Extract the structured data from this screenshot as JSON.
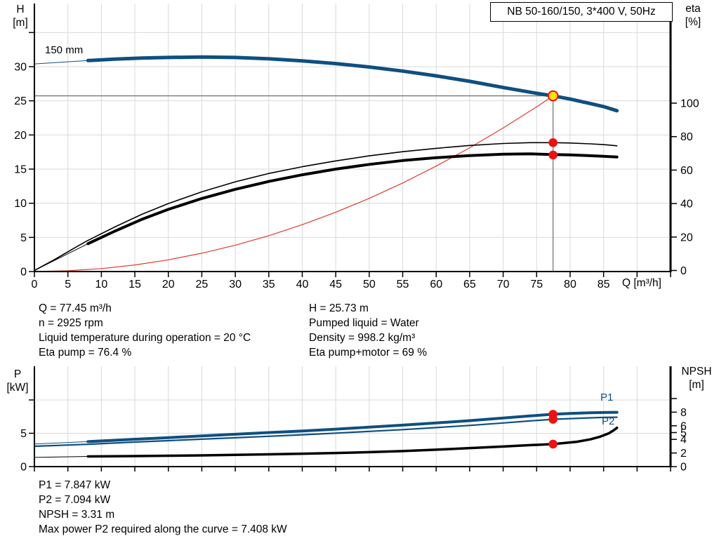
{
  "colors": {
    "curve_blue": "#0e4f80",
    "curve_black": "#000000",
    "curve_red": "#e03a30",
    "dot_red": "#ee1111",
    "duty_yellow": "#ffe014",
    "grid": "#d9d9d9",
    "axis": "#000000",
    "crosshair": "#777777",
    "label_blue": "#0e4f80"
  },
  "chart_data": [
    {
      "type": "line",
      "title": "NB 50-160/150, 3*400 V, 50Hz",
      "x": {
        "label": "Q [m³/h]",
        "min": 0,
        "max": 95,
        "grid_step": 5,
        "ticks": [
          {
            "v": 0,
            "t": "0"
          },
          {
            "v": 5,
            "t": "5"
          },
          {
            "v": 10,
            "t": "10"
          },
          {
            "v": 15,
            "t": "15"
          },
          {
            "v": 20,
            "t": "20"
          },
          {
            "v": 25,
            "t": "25"
          },
          {
            "v": 30,
            "t": "30"
          },
          {
            "v": 35,
            "t": "35"
          },
          {
            "v": 40,
            "t": "40"
          },
          {
            "v": 45,
            "t": "45"
          },
          {
            "v": 50,
            "t": "50"
          },
          {
            "v": 55,
            "t": "55"
          },
          {
            "v": 60,
            "t": "60"
          },
          {
            "v": 65,
            "t": "65"
          },
          {
            "v": 70,
            "t": "70"
          },
          {
            "v": 75,
            "t": "75"
          },
          {
            "v": 80,
            "t": "80"
          },
          {
            "v": 85,
            "t": "85"
          },
          {
            "v": 90,
            "t": ""
          },
          {
            "v": 95,
            "t": ""
          }
        ]
      },
      "y_left": {
        "label": [
          "H",
          "[m]"
        ],
        "min": 0,
        "max": 39,
        "ticks": [
          {
            "v": 0,
            "t": "0"
          },
          {
            "v": 5,
            "t": "5"
          },
          {
            "v": 10,
            "t": "10"
          },
          {
            "v": 15,
            "t": "15"
          },
          {
            "v": 20,
            "t": "20"
          },
          {
            "v": 25,
            "t": "25"
          },
          {
            "v": 30,
            "t": "30"
          },
          {
            "v": 35,
            "t": ""
          }
        ],
        "grid": [
          5,
          10,
          15,
          20,
          25,
          30,
          35
        ]
      },
      "y_right": {
        "label": [
          "eta",
          "[%]"
        ],
        "min": 0,
        "max": 105,
        "ticks": [
          {
            "v": 0,
            "t": "0"
          },
          {
            "v": 20,
            "t": "20"
          },
          {
            "v": 40,
            "t": "40"
          },
          {
            "v": 60,
            "t": "60"
          },
          {
            "v": 80,
            "t": "80"
          },
          {
            "v": 100,
            "t": "100"
          }
        ]
      },
      "series": [
        {
          "name": "system-curve",
          "axis": "left",
          "color": "curve_red",
          "width": 1.2,
          "points": [
            [
              0,
              0
            ],
            [
              5,
              0.11
            ],
            [
              10,
              0.43
            ],
            [
              15,
              0.97
            ],
            [
              20,
              1.72
            ],
            [
              25,
              2.68
            ],
            [
              30,
              3.86
            ],
            [
              35,
              5.25
            ],
            [
              40,
              6.86
            ],
            [
              45,
              8.69
            ],
            [
              50,
              10.72
            ],
            [
              55,
              12.97
            ],
            [
              60,
              15.44
            ],
            [
              65,
              18.12
            ],
            [
              70,
              21.02
            ],
            [
              75,
              24.12
            ],
            [
              77.45,
              25.73
            ]
          ]
        },
        {
          "name": "eta-pump-motor-lead",
          "axis": "right",
          "color": "curve_black",
          "width": 1,
          "points": [
            [
              0,
              0
            ],
            [
              4,
              8
            ],
            [
              8,
              16
            ]
          ]
        },
        {
          "name": "eta-pump",
          "label": "eta pump",
          "axis": "right",
          "color": "curve_black",
          "width": 1.6,
          "points": [
            [
              0,
              0
            ],
            [
              3,
              6.5
            ],
            [
              6,
              13.5
            ],
            [
              8,
              18
            ],
            [
              12,
              26
            ],
            [
              16,
              33.5
            ],
            [
              20,
              40
            ],
            [
              25,
              47
            ],
            [
              30,
              53
            ],
            [
              35,
              58
            ],
            [
              40,
              62
            ],
            [
              45,
              65.5
            ],
            [
              50,
              68.5
            ],
            [
              55,
              71
            ],
            [
              60,
              73
            ],
            [
              65,
              74.7
            ],
            [
              70,
              75.9
            ],
            [
              74,
              76.4
            ],
            [
              77.45,
              76.4
            ],
            [
              80,
              76.2
            ],
            [
              83,
              75.7
            ],
            [
              85,
              75.2
            ],
            [
              87,
              74.5
            ]
          ]
        },
        {
          "name": "eta-pump-motor",
          "label": "eta pump+motor",
          "axis": "right",
          "color": "curve_black",
          "width": 4,
          "points": [
            [
              8,
              16
            ],
            [
              12,
              23.5
            ],
            [
              16,
              30.5
            ],
            [
              20,
              36.5
            ],
            [
              25,
              43
            ],
            [
              30,
              48.5
            ],
            [
              35,
              53.2
            ],
            [
              40,
              57.2
            ],
            [
              45,
              60.6
            ],
            [
              50,
              63.4
            ],
            [
              55,
              65.7
            ],
            [
              60,
              67.4
            ],
            [
              65,
              68.7
            ],
            [
              70,
              69.5
            ],
            [
              74,
              69.7
            ],
            [
              77.45,
              69.3
            ],
            [
              80,
              69.1
            ],
            [
              83,
              68.6
            ],
            [
              85,
              68.2
            ],
            [
              87,
              67.8
            ]
          ]
        },
        {
          "name": "head-lead",
          "axis": "left",
          "color": "curve_blue",
          "width": 1,
          "points": [
            [
              0,
              30.4
            ],
            [
              8,
              30.9
            ]
          ]
        },
        {
          "name": "head-150mm",
          "label": "150 mm",
          "axis": "left",
          "color": "curve_blue",
          "width": 5,
          "points": [
            [
              8,
              30.9
            ],
            [
              12,
              31.1
            ],
            [
              16,
              31.25
            ],
            [
              20,
              31.35
            ],
            [
              25,
              31.42
            ],
            [
              30,
              31.35
            ],
            [
              35,
              31.15
            ],
            [
              40,
              30.85
            ],
            [
              45,
              30.45
            ],
            [
              50,
              29.95
            ],
            [
              55,
              29.35
            ],
            [
              60,
              28.65
            ],
            [
              65,
              27.85
            ],
            [
              70,
              26.95
            ],
            [
              75,
              26.1
            ],
            [
              77.45,
              25.73
            ],
            [
              80,
              25.25
            ],
            [
              83,
              24.6
            ],
            [
              85,
              24.15
            ],
            [
              87,
              23.55
            ]
          ]
        }
      ],
      "duty_point": {
        "q": 77.45,
        "h": 25.73,
        "eta_pump": 76.4,
        "eta_pump_motor": 69
      }
    },
    {
      "type": "line",
      "x": {
        "label": "",
        "min": 0,
        "max": 95,
        "grid_step": 5,
        "ticks": [
          {
            "v": 0,
            "t": ""
          },
          {
            "v": 5,
            "t": ""
          },
          {
            "v": 10,
            "t": ""
          },
          {
            "v": 15,
            "t": ""
          },
          {
            "v": 20,
            "t": ""
          },
          {
            "v": 25,
            "t": ""
          },
          {
            "v": 30,
            "t": ""
          },
          {
            "v": 35,
            "t": ""
          },
          {
            "v": 40,
            "t": ""
          },
          {
            "v": 45,
            "t": ""
          },
          {
            "v": 50,
            "t": ""
          },
          {
            "v": 55,
            "t": ""
          },
          {
            "v": 60,
            "t": ""
          },
          {
            "v": 65,
            "t": ""
          },
          {
            "v": 70,
            "t": ""
          },
          {
            "v": 75,
            "t": ""
          },
          {
            "v": 80,
            "t": ""
          },
          {
            "v": 85,
            "t": ""
          },
          {
            "v": 90,
            "t": ""
          },
          {
            "v": 95,
            "t": ""
          }
        ]
      },
      "y_left": {
        "label": [
          "P",
          "[kW]"
        ],
        "min": 0,
        "max": 15,
        "ticks": [
          {
            "v": 0,
            "t": "0"
          },
          {
            "v": 5,
            "t": "5"
          },
          {
            "v": 10,
            "t": ""
          }
        ],
        "grid": [
          5,
          10
        ]
      },
      "y_right": {
        "label": [
          "NPSH",
          "[m]"
        ],
        "min": 0,
        "max": 14,
        "ticks": [
          {
            "v": 0,
            "t": "0"
          },
          {
            "v": 2,
            "t": "2"
          },
          {
            "v": 4,
            "t": "4"
          },
          {
            "v": 5,
            "t": "5"
          },
          {
            "v": 6,
            "t": "6"
          },
          {
            "v": 8,
            "t": "8"
          },
          {
            "v": 10,
            "t": ""
          }
        ]
      },
      "end_labels": {
        "p1": "P1",
        "p2": "P2"
      },
      "series": [
        {
          "name": "npsh-lead",
          "axis": "right",
          "color": "curve_black",
          "width": 1,
          "points": [
            [
              0,
              1.35
            ],
            [
              8,
              1.5
            ]
          ]
        },
        {
          "name": "npsh",
          "label": "NPSH",
          "axis": "right",
          "color": "curve_black",
          "width": 3.5,
          "points": [
            [
              8,
              1.5
            ],
            [
              15,
              1.55
            ],
            [
              20,
              1.6
            ],
            [
              25,
              1.65
            ],
            [
              30,
              1.72
            ],
            [
              35,
              1.8
            ],
            [
              40,
              1.9
            ],
            [
              45,
              2.0
            ],
            [
              50,
              2.12
            ],
            [
              55,
              2.28
            ],
            [
              60,
              2.48
            ],
            [
              65,
              2.72
            ],
            [
              70,
              2.95
            ],
            [
              74,
              3.15
            ],
            [
              77.45,
              3.31
            ],
            [
              79,
              3.45
            ],
            [
              81,
              3.65
            ],
            [
              83,
              4.0
            ],
            [
              84.5,
              4.4
            ],
            [
              85.8,
              4.9
            ],
            [
              86.6,
              5.4
            ],
            [
              87,
              5.7
            ]
          ]
        },
        {
          "name": "p2",
          "label": "P2",
          "axis": "left",
          "color": "curve_blue",
          "width": 2.2,
          "points": [
            [
              0,
              3.05
            ],
            [
              8,
              3.35
            ],
            [
              15,
              3.68
            ],
            [
              20,
              3.9
            ],
            [
              25,
              4.12
            ],
            [
              30,
              4.33
            ],
            [
              35,
              4.55
            ],
            [
              40,
              4.78
            ],
            [
              45,
              5.02
            ],
            [
              50,
              5.28
            ],
            [
              55,
              5.55
            ],
            [
              60,
              5.85
            ],
            [
              65,
              6.18
            ],
            [
              70,
              6.55
            ],
            [
              74,
              6.85
            ],
            [
              77.45,
              7.09
            ],
            [
              80,
              7.2
            ],
            [
              83,
              7.32
            ],
            [
              85,
              7.38
            ],
            [
              87,
              7.41
            ]
          ]
        },
        {
          "name": "p1-lead",
          "axis": "left",
          "color": "curve_blue",
          "width": 1,
          "points": [
            [
              0,
              3.4
            ],
            [
              8,
              3.75
            ]
          ]
        },
        {
          "name": "p1",
          "label": "P1",
          "axis": "left",
          "color": "curve_blue",
          "width": 4,
          "points": [
            [
              8,
              3.75
            ],
            [
              15,
              4.1
            ],
            [
              20,
              4.35
            ],
            [
              25,
              4.6
            ],
            [
              30,
              4.85
            ],
            [
              35,
              5.1
            ],
            [
              40,
              5.35
            ],
            [
              45,
              5.62
            ],
            [
              50,
              5.92
            ],
            [
              55,
              6.22
            ],
            [
              60,
              6.55
            ],
            [
              65,
              6.9
            ],
            [
              70,
              7.28
            ],
            [
              74,
              7.6
            ],
            [
              77.45,
              7.85
            ],
            [
              80,
              7.97
            ],
            [
              83,
              8.07
            ],
            [
              85,
              8.12
            ],
            [
              87,
              8.15
            ]
          ]
        }
      ],
      "duty_point": {
        "q": 77.45,
        "p1": 7.847,
        "p2": 7.094,
        "npsh": 3.31
      }
    }
  ],
  "info_top_left": [
    "Q = 77.45 m³/h",
    "n = 2925 rpm",
    "Liquid temperature during operation = 20 °C",
    "Eta pump = 76.4 %"
  ],
  "info_top_right": [
    "H = 25.73 m",
    "Pumped liquid = Water",
    "Density = 998.2 kg/m³",
    "Eta pump+motor = 69 %"
  ],
  "info_bottom": [
    "P1 = 7.847 kW",
    "P2 = 7.094 kW",
    "NPSH = 3.31 m",
    "Max power P2 required along the curve = 7.408 kW"
  ]
}
